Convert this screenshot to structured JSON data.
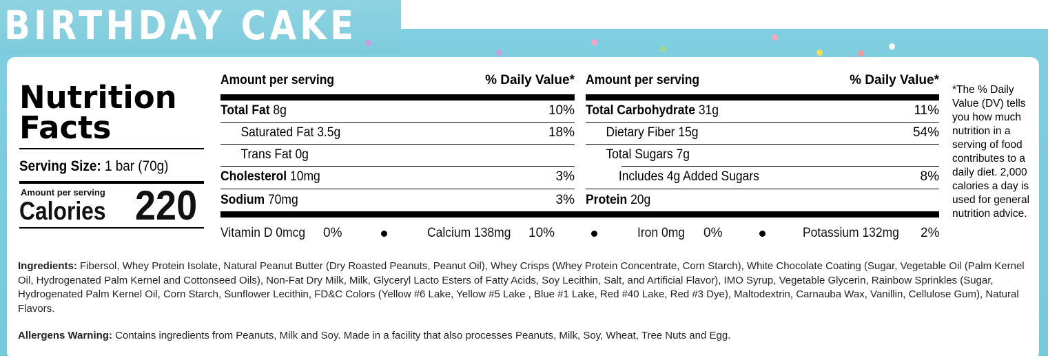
{
  "banner": {
    "title": "BIRTHDAY CAKE",
    "sprinkle_colors": [
      "#f7a5c0",
      "#f4e04d",
      "#9fd98a",
      "#c79ee0",
      "#f19aa3",
      "#ffffff"
    ]
  },
  "nutrition": {
    "title": "Nutrition Facts",
    "serving_size_label": "Serving Size:",
    "serving_size_value": "1 bar (70g)",
    "amount_per_serving": "Amount per serving",
    "calories_label": "Calories",
    "calories_value": "220"
  },
  "left_table": {
    "header_left": "Amount per serving",
    "header_right": "% Daily Value*",
    "rows": [
      {
        "label": "Total Fat",
        "amount": "8g",
        "pct": "10%"
      },
      {
        "label": "Saturated Fat",
        "amount": "3.5g",
        "pct": "18%"
      },
      {
        "label": "Trans Fat",
        "amount": "0g",
        "pct": ""
      },
      {
        "label": "Cholesterol",
        "amount": "10mg",
        "pct": "3%"
      },
      {
        "label": "Sodium",
        "amount": "70mg",
        "pct": "3%"
      }
    ]
  },
  "right_table": {
    "header_left": "Amount per serving",
    "header_right": "% Daily Value*",
    "rows": [
      {
        "label": "Total Carbohydrate",
        "amount": "31g",
        "pct": "11%"
      },
      {
        "label": "Dietary Fiber",
        "amount": "15g",
        "pct": "54%"
      },
      {
        "label": "Total Sugars",
        "amount": "7g",
        "pct": ""
      },
      {
        "label": "Includes 4g Added Sugars",
        "amount": "",
        "pct": "8%"
      },
      {
        "label": "Protein",
        "amount": "20g",
        "pct": ""
      }
    ]
  },
  "vitamins": {
    "vitamin_d": "Vitamin D 0mcg",
    "vitamin_d_pct": "0%",
    "calcium": "Calcium 138mg",
    "calcium_pct": "10%",
    "iron": "Iron 0mg",
    "iron_pct": "0%",
    "potassium": "Potassium 132mg",
    "potassium_pct": "2%"
  },
  "dv_note": "*The % Daily Value (DV) tells you how much nutrition in a serving of food contributes to a daily diet. 2,000 calories a day is used for general nutrition advice.",
  "ingredients": {
    "label": "Ingredients:",
    "text": "Fibersol, Whey Protein Isolate, Natural Peanut Butter (Dry Roasted Peanuts, Peanut Oil), Whey Crisps (Whey Protein Concentrate, Corn Starch), White Chocolate Coating (Sugar, Vegetable Oil (Palm Kernel Oil, Hydrogenated Palm Kernel and Cottonseed Oils), Non-Fat Dry Milk, Milk, Glyceryl Lacto Esters of Fatty Acids, Soy Lecithin, Salt, and Artificial Flavor), IMO Syrup, Vegetable Glycerin, Rainbow Sprinkles (Sugar, Hydrogenated Palm Kernel Oil, Corn Starch, Sunflower Lecithin, FD&C Colors (Yellow #6 Lake, Yellow #5 Lake , Blue #1 Lake, Red #40 Lake, Red #3 Dye), Maltodextrin, Carnauba Wax, Vanillin, Cellulose Gum), Natural Flavors."
  },
  "allergens": {
    "label": "Allergens Warning:",
    "text": "Contains ingredients from Peanuts, Milk and Soy. Made in a facility that also processes Peanuts, Milk, Soy, Wheat, Tree Nuts and Egg."
  }
}
